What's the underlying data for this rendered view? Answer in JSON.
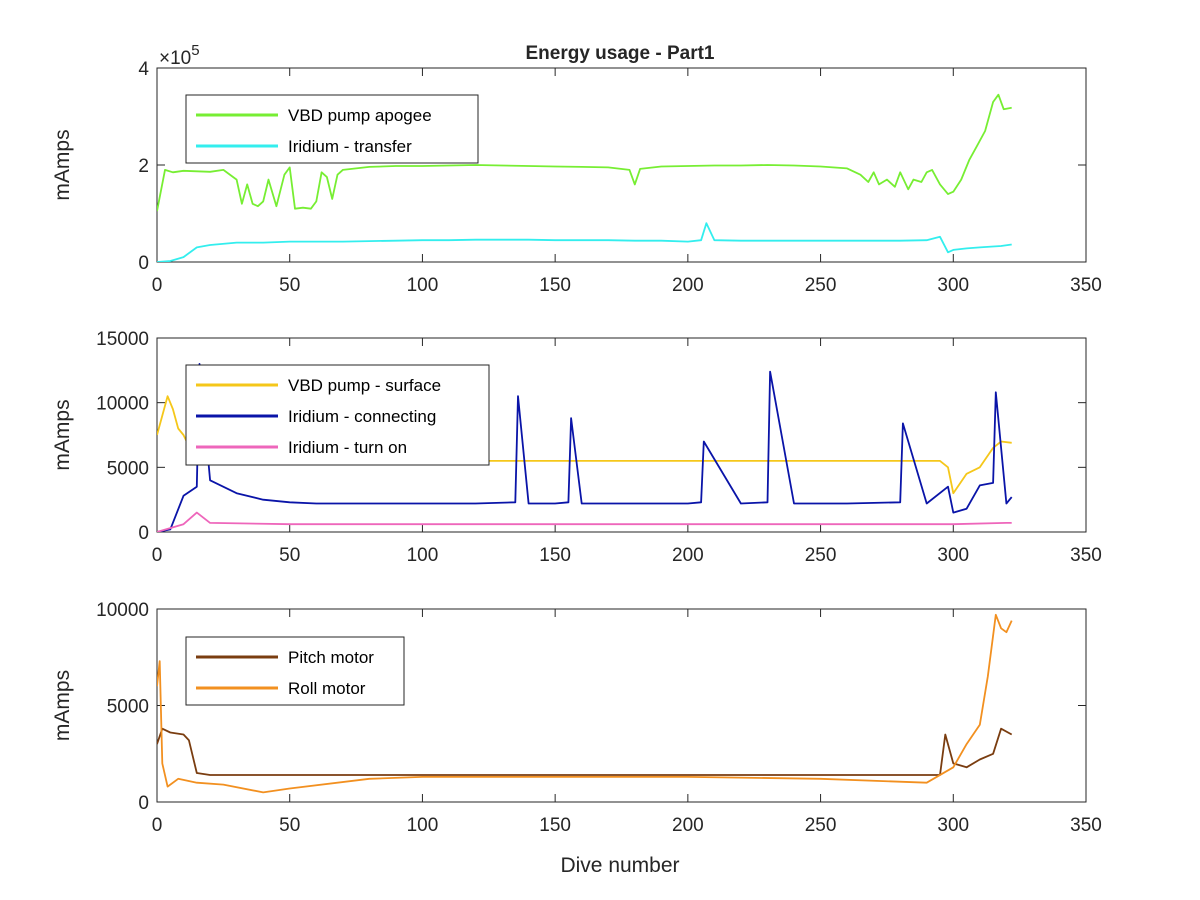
{
  "figure": {
    "title": "Energy usage - Part1",
    "xlabel": "Dive number"
  },
  "chart_data": [
    {
      "type": "line",
      "title": "Energy usage - Part1",
      "xlabel": "",
      "ylabel": "mAmps",
      "xlim": [
        0,
        350
      ],
      "ylim": [
        0,
        400000
      ],
      "xticks": [
        0,
        50,
        100,
        150,
        200,
        250,
        300,
        350
      ],
      "yticks": [
        0,
        200000,
        400000
      ],
      "ytick_labels": [
        "0",
        "2",
        "4"
      ],
      "exponent_label": "×10",
      "exponent_power": "5",
      "grid": false,
      "legend_position": "top-left",
      "series": [
        {
          "name": "VBD pump apogee",
          "color": "#77ee33",
          "x": [
            0,
            3,
            6,
            10,
            15,
            20,
            25,
            30,
            32,
            34,
            36,
            38,
            40,
            42,
            45,
            48,
            50,
            52,
            55,
            58,
            60,
            62,
            64,
            66,
            68,
            70,
            75,
            80,
            90,
            100,
            110,
            120,
            130,
            140,
            150,
            160,
            170,
            178,
            180,
            182,
            190,
            200,
            210,
            220,
            230,
            240,
            250,
            260,
            265,
            268,
            270,
            272,
            275,
            278,
            280,
            283,
            285,
            288,
            290,
            292,
            295,
            298,
            300,
            303,
            306,
            309,
            312,
            315,
            317,
            319,
            322
          ],
          "values": [
            105000,
            190000,
            185000,
            188000,
            187000,
            186000,
            190000,
            170000,
            120000,
            160000,
            120000,
            115000,
            125000,
            170000,
            115000,
            180000,
            195000,
            110000,
            112000,
            110000,
            125000,
            185000,
            175000,
            130000,
            180000,
            190000,
            193000,
            196000,
            198000,
            198000,
            199000,
            200000,
            199000,
            198000,
            197000,
            196000,
            195000,
            190000,
            160000,
            192000,
            197000,
            198000,
            199000,
            199000,
            200000,
            199000,
            197000,
            193000,
            180000,
            165000,
            185000,
            160000,
            170000,
            155000,
            185000,
            150000,
            170000,
            165000,
            185000,
            190000,
            160000,
            140000,
            145000,
            170000,
            210000,
            240000,
            270000,
            330000,
            345000,
            315000,
            318000
          ]
        },
        {
          "name": "Iridium - transfer",
          "color": "#33eeee",
          "x": [
            0,
            5,
            10,
            15,
            20,
            30,
            40,
            50,
            60,
            70,
            80,
            90,
            100,
            110,
            120,
            130,
            140,
            150,
            160,
            170,
            180,
            190,
            200,
            205,
            207,
            210,
            220,
            230,
            240,
            250,
            260,
            270,
            280,
            290,
            295,
            298,
            300,
            305,
            310,
            315,
            318,
            322
          ],
          "values": [
            0,
            2000,
            10000,
            30000,
            35000,
            40000,
            40000,
            42000,
            42000,
            42000,
            43000,
            44000,
            45000,
            45000,
            46000,
            46000,
            46000,
            45000,
            45000,
            45000,
            44000,
            44000,
            42000,
            45000,
            80000,
            45000,
            44000,
            44000,
            44000,
            44000,
            44000,
            44000,
            44000,
            45000,
            52000,
            20000,
            25000,
            28000,
            30000,
            32000,
            33000,
            36000
          ]
        }
      ]
    },
    {
      "type": "line",
      "title": "",
      "xlabel": "",
      "ylabel": "mAmps",
      "xlim": [
        0,
        350
      ],
      "ylim": [
        0,
        15000
      ],
      "xticks": [
        0,
        50,
        100,
        150,
        200,
        250,
        300,
        350
      ],
      "yticks": [
        0,
        5000,
        10000,
        15000
      ],
      "grid": false,
      "legend_position": "top-left",
      "series": [
        {
          "name": "VBD pump - surface",
          "color": "#f5c71a",
          "x": [
            0,
            2,
            4,
            6,
            8,
            10,
            15,
            20,
            50,
            100,
            150,
            195,
            200,
            205,
            250,
            290,
            295,
            298,
            300,
            305,
            310,
            315,
            318,
            322
          ],
          "values": [
            7500,
            9000,
            10500,
            9500,
            8000,
            7500,
            5400,
            5500,
            5500,
            5500,
            5500,
            5500,
            5500,
            5500,
            5500,
            5500,
            5500,
            5000,
            3000,
            4500,
            5000,
            6500,
            7000,
            6900
          ]
        },
        {
          "name": "Iridium - connecting",
          "color": "#0a14a8",
          "x": [
            0,
            5,
            10,
            15,
            16,
            20,
            30,
            40,
            50,
            60,
            70,
            80,
            100,
            120,
            135,
            136,
            140,
            150,
            155,
            156,
            160,
            180,
            200,
            205,
            206,
            220,
            230,
            231,
            240,
            260,
            280,
            281,
            290,
            298,
            300,
            305,
            310,
            315,
            316,
            320,
            322
          ],
          "values": [
            0,
            200,
            2800,
            3500,
            13000,
            4000,
            3000,
            2500,
            2300,
            2200,
            2200,
            2200,
            2200,
            2200,
            2300,
            10500,
            2200,
            2200,
            2300,
            8800,
            2200,
            2200,
            2200,
            2300,
            7000,
            2200,
            2300,
            12400,
            2200,
            2200,
            2300,
            8400,
            2200,
            3500,
            1500,
            1800,
            3600,
            3800,
            10800,
            2200,
            2700
          ]
        },
        {
          "name": "Iridium - turn on",
          "color": "#ee66bb",
          "x": [
            0,
            10,
            15,
            20,
            50,
            100,
            150,
            200,
            250,
            300,
            320,
            322
          ],
          "values": [
            0,
            600,
            1500,
            700,
            600,
            600,
            600,
            600,
            600,
            600,
            700,
            700
          ]
        }
      ]
    },
    {
      "type": "line",
      "title": "",
      "xlabel": "Dive number",
      "ylabel": "mAmps",
      "xlim": [
        0,
        350
      ],
      "ylim": [
        0,
        10000
      ],
      "xticks": [
        0,
        50,
        100,
        150,
        200,
        250,
        300,
        350
      ],
      "yticks": [
        0,
        5000,
        10000
      ],
      "grid": false,
      "legend_position": "top-left",
      "series": [
        {
          "name": "Pitch motor",
          "color": "#7a3d10",
          "x": [
            0,
            2,
            5,
            10,
            12,
            15,
            20,
            50,
            100,
            150,
            200,
            250,
            295,
            297,
            300,
            305,
            310,
            315,
            318,
            322
          ],
          "values": [
            3000,
            3800,
            3600,
            3500,
            3200,
            1500,
            1400,
            1400,
            1400,
            1400,
            1400,
            1400,
            1400,
            3500,
            2000,
            1800,
            2200,
            2500,
            3800,
            3500
          ]
        },
        {
          "name": "Roll motor",
          "color": "#f29020",
          "x": [
            0,
            1,
            2,
            4,
            8,
            15,
            25,
            40,
            50,
            80,
            100,
            150,
            200,
            250,
            290,
            300,
            305,
            310,
            313,
            316,
            318,
            320,
            322
          ],
          "values": [
            6000,
            7300,
            2000,
            800,
            1200,
            1000,
            900,
            500,
            700,
            1200,
            1300,
            1300,
            1300,
            1200,
            1000,
            1800,
            3000,
            4000,
            6500,
            9700,
            9000,
            8800,
            9400
          ]
        }
      ]
    }
  ]
}
